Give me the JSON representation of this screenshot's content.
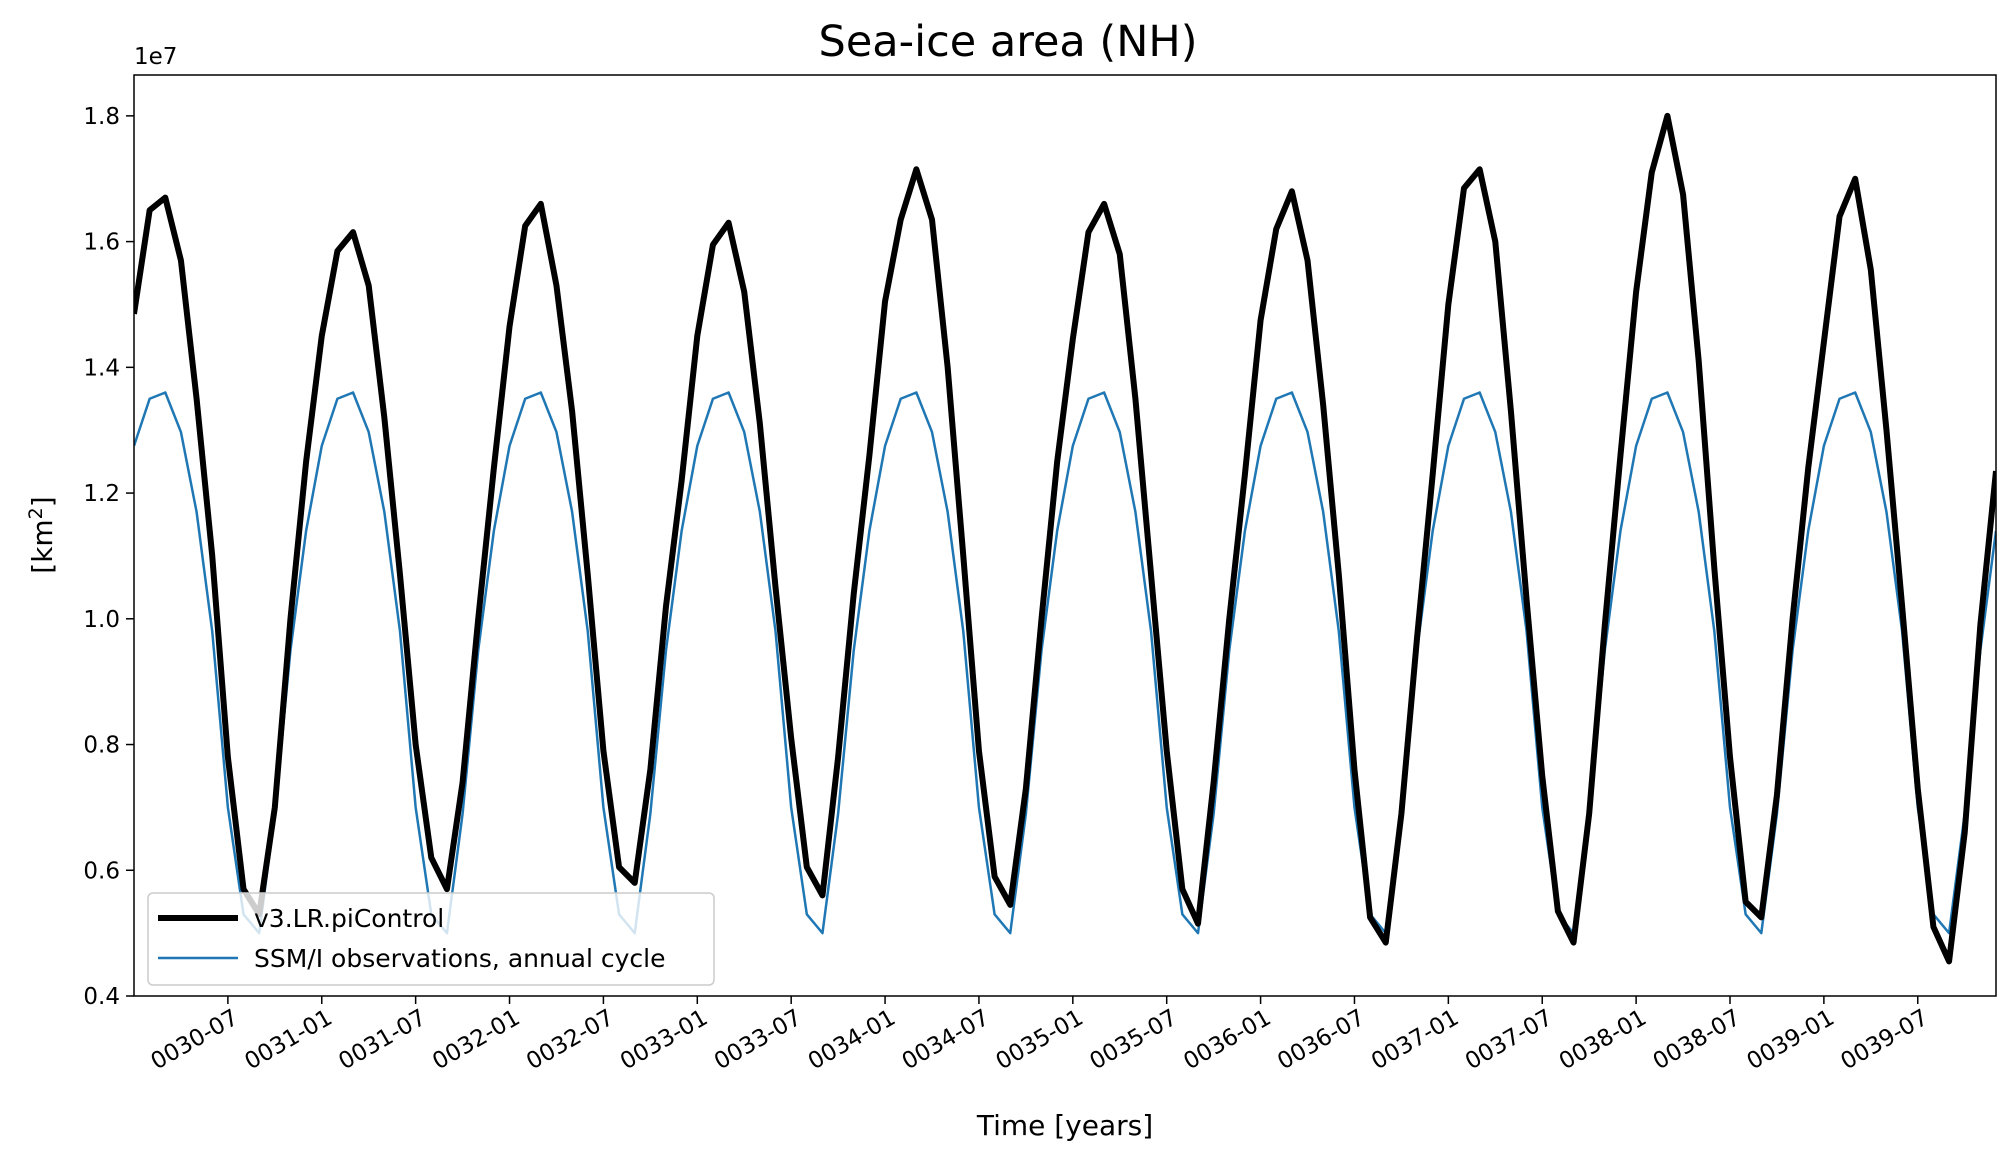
{
  "chart_data": {
    "type": "line",
    "title": "Sea-ice area (NH)",
    "xlabel": "Time [years]",
    "ylabel_base": "[km",
    "ylabel_sup": "2",
    "ylabel_end": "]",
    "y_offset_label": "1e7",
    "ylim": [
      0.4,
      1.865
    ],
    "xlim": [
      0,
      119
    ],
    "y_ticks": [
      0.4,
      0.6,
      0.8,
      1.0,
      1.2,
      1.4,
      1.6,
      1.8
    ],
    "y_tick_labels": [
      "0.4",
      "0.6",
      "0.8",
      "1.0",
      "1.2",
      "1.4",
      "1.6",
      "1.8"
    ],
    "x_ticks": [
      6,
      12,
      18,
      24,
      30,
      36,
      42,
      48,
      54,
      60,
      66,
      72,
      78,
      84,
      90,
      96,
      102,
      108,
      114
    ],
    "x_tick_labels": [
      "0030-07",
      "0031-01",
      "0031-07",
      "0032-01",
      "0032-07",
      "0033-01",
      "0033-07",
      "0034-01",
      "0034-07",
      "0035-01",
      "0035-07",
      "0036-01",
      "0036-07",
      "0037-01",
      "0037-07",
      "0038-01",
      "0038-07",
      "0039-01",
      "0039-07"
    ],
    "legend_position": "lower-left",
    "series": [
      {
        "name": "v3.LR.piControl",
        "color": "#000000",
        "values": [
          1.485,
          1.65,
          1.67,
          1.57,
          1.35,
          1.1,
          0.78,
          0.57,
          0.53,
          0.7,
          1.0,
          1.25,
          1.45,
          1.585,
          1.615,
          1.53,
          1.32,
          1.07,
          0.8,
          0.62,
          0.57,
          0.74,
          1.0,
          1.24,
          1.465,
          1.625,
          1.66,
          1.53,
          1.33,
          1.07,
          0.79,
          0.605,
          0.58,
          0.76,
          1.02,
          1.22,
          1.45,
          1.595,
          1.63,
          1.52,
          1.31,
          1.05,
          0.81,
          0.605,
          0.56,
          0.78,
          1.04,
          1.26,
          1.505,
          1.635,
          1.715,
          1.635,
          1.4,
          1.1,
          0.79,
          0.59,
          0.545,
          0.73,
          1.0,
          1.25,
          1.445,
          1.615,
          1.66,
          1.58,
          1.35,
          1.07,
          0.79,
          0.57,
          0.515,
          0.74,
          1.0,
          1.23,
          1.475,
          1.62,
          1.68,
          1.57,
          1.34,
          1.07,
          0.76,
          0.525,
          0.485,
          0.69,
          0.97,
          1.23,
          1.5,
          1.685,
          1.715,
          1.6,
          1.33,
          1.03,
          0.75,
          0.535,
          0.485,
          0.69,
          0.99,
          1.26,
          1.52,
          1.71,
          1.8,
          1.675,
          1.41,
          1.08,
          0.78,
          0.55,
          0.525,
          0.72,
          1.0,
          1.24,
          1.44,
          1.64,
          1.7,
          1.555,
          1.3,
          1.02,
          0.73,
          0.51,
          0.455,
          0.66,
          0.99,
          1.235
        ]
      },
      {
        "name": "SSM/I observations, annual cycle",
        "color": "#1f77b4",
        "cycle": [
          1.275,
          1.35,
          1.36,
          1.297,
          1.17,
          0.98,
          0.7,
          0.53,
          0.5,
          0.69,
          0.95,
          1.14
        ]
      }
    ]
  }
}
